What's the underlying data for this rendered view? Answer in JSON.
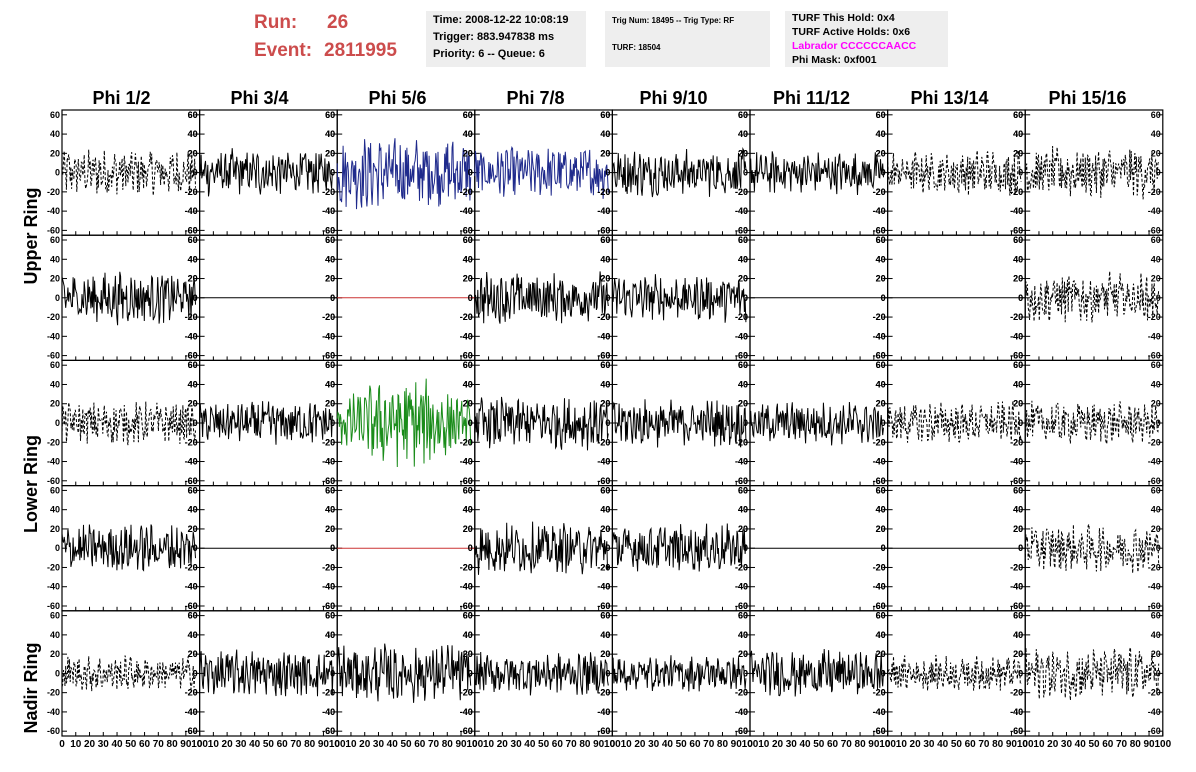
{
  "header": {
    "run_label": "Run:",
    "run_value": "26",
    "event_label": "Event:",
    "event_value": "2811995",
    "time_line": "Time: 2008-12-22 10:08:19",
    "trigger_line": "Trigger: 883.947838 ms",
    "priority_line": "Priority: 6 -- Queue: 6",
    "trig_num_line": "Trig Num: 18495 -- Trig Type: RF",
    "turf_line": "TURF: 18504",
    "turf_this_hold": "TURF This Hold: 0x4",
    "turf_active_holds": "TURF Active Holds: 0x6",
    "labrador": "Labrador CCCCCCAACC",
    "phi_mask": "Phi Mask: 0xf001",
    "labrador_color": "#ff00ff",
    "run_color": "#cc4c4c"
  },
  "columns": [
    "Phi 1/2",
    "Phi 3/4",
    "Phi 5/6",
    "Phi 7/8",
    "Phi 9/10",
    "Phi 11/12",
    "Phi 13/14",
    "Phi 15/16"
  ],
  "rows": [
    "Upper Ring",
    "Lower Ring",
    "Nadir Ring"
  ],
  "chart_data": {
    "type": "line",
    "xlim": [
      0,
      100
    ],
    "x_ticks": [
      0,
      10,
      20,
      30,
      40,
      50,
      60,
      70,
      80,
      90,
      100
    ],
    "ylim": [
      -65,
      65
    ],
    "y_ticks": [
      -60,
      -40,
      -20,
      0,
      20,
      40,
      60
    ],
    "panel_rows": 5,
    "panel_cols": 8,
    "style_grid": [
      [
        "dashed",
        "solid",
        "blue",
        "blue",
        "solid",
        "solid",
        "dashed",
        "dashed"
      ],
      [
        "solid",
        "flat",
        "redflat",
        "solid",
        "solid",
        "flat",
        "flat",
        "dashed"
      ],
      [
        "dashed",
        "solid",
        "green",
        "solid",
        "solid",
        "solid",
        "dashed",
        "dashed"
      ],
      [
        "solid",
        "flat",
        "redflat",
        "solid",
        "solid",
        "flat",
        "flat",
        "dashed"
      ],
      [
        "dashed",
        "solid",
        "solid",
        "solid",
        "solid",
        "solid",
        "dashed",
        "dashed"
      ]
    ],
    "amplitude_grid": [
      [
        20,
        20,
        30,
        22,
        20,
        18,
        20,
        22
      ],
      [
        22,
        0,
        0,
        22,
        20,
        0,
        0,
        22
      ],
      [
        18,
        18,
        30,
        22,
        20,
        18,
        18,
        18
      ],
      [
        20,
        0,
        0,
        22,
        20,
        0,
        0,
        20
      ],
      [
        15,
        20,
        25,
        18,
        15,
        20,
        15,
        22
      ]
    ],
    "colors": {
      "blue": "#1f2a8c",
      "green": "#1a8c1a",
      "red": "#cc3333",
      "trace": "#000000"
    }
  }
}
